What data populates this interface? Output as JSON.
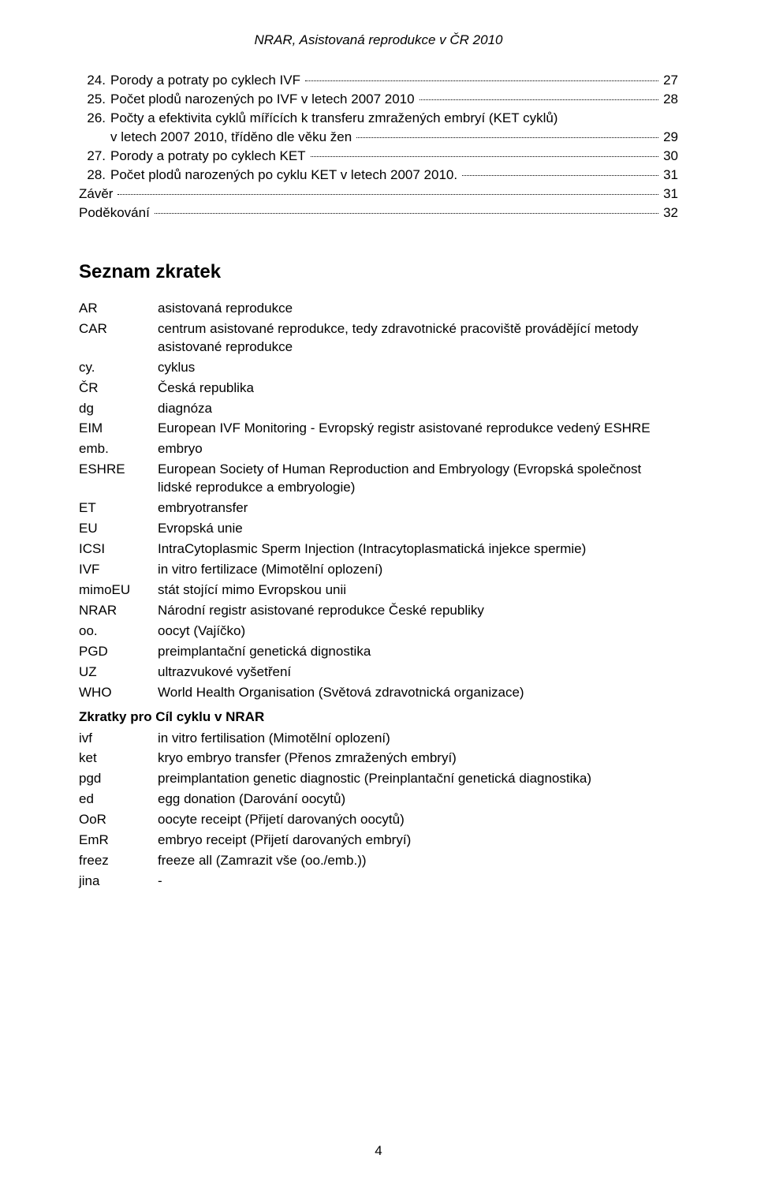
{
  "header": "NRAR, Asistovaná reprodukce v ČR 2010",
  "toc": [
    {
      "num": "24.",
      "label": "Porody a potraty po cyklech IVF",
      "page": "27",
      "indent": true
    },
    {
      "num": "25.",
      "label": "Počet plodů narozených po IVF v letech 2007 2010",
      "page": "28",
      "indent": true
    },
    {
      "num": "26.",
      "label": "Počty a efektivita cyklů mířících k transferu zmražených embryí (KET cyklů)",
      "cont": "v letech 2007 2010, tříděno dle věku žen",
      "page": "29",
      "indent": true
    },
    {
      "num": "27.",
      "label": "Porody a potraty po cyklech KET",
      "page": "30",
      "indent": true
    },
    {
      "num": "28.",
      "label": "Počet plodů narozených po cyklu KET v letech 2007 2010.",
      "page": "31",
      "indent": true
    },
    {
      "num": "",
      "label": "Závěr",
      "page": "31",
      "indent": false
    },
    {
      "num": "",
      "label": "Poděkování",
      "page": "32",
      "indent": false
    }
  ],
  "section_title": "Seznam zkratek",
  "abbr": [
    {
      "term": "AR",
      "def": "asistovaná reprodukce"
    },
    {
      "term": "CAR",
      "def": "centrum asistované reprodukce, tedy zdravotnické pracoviště provádějící metody asistované reprodukce"
    },
    {
      "term": "cy.",
      "def": "cyklus"
    },
    {
      "term": "ČR",
      "def": "Česká republika"
    },
    {
      "term": "dg",
      "def": "diagnóza"
    },
    {
      "term": "EIM",
      "def": "European IVF Monitoring - Evropský registr asistované reprodukce vedený ESHRE"
    },
    {
      "term": "emb.",
      "def": "embryo"
    },
    {
      "term": "ESHRE",
      "def": "European Society of Human Reproduction and Embryology (Evropská společnost lidské reprodukce a embryologie)"
    },
    {
      "term": "ET",
      "def": "embryotransfer"
    },
    {
      "term": "EU",
      "def": "Evropská unie"
    },
    {
      "term": "ICSI",
      "def": "IntraCytoplasmic Sperm Injection (Intracytoplasmatická injekce spermie)"
    },
    {
      "term": "IVF",
      "def": "in vitro fertilizace (Mimotělní oplození)"
    },
    {
      "term": "mimoEU",
      "def": "stát stojící mimo Evropskou unii"
    },
    {
      "term": "NRAR",
      "def": "Národní registr asistované reprodukce České republiky"
    },
    {
      "term": "oo.",
      "def": "oocyt (Vajíčko)"
    },
    {
      "term": "PGD",
      "def": "preimplantační genetická dignostika"
    },
    {
      "term": "UZ",
      "def": "ultrazvukové vyšetření"
    },
    {
      "term": "WHO",
      "def": "World Health Organisation (Světová zdravotnická organizace)"
    }
  ],
  "sub_title": "Zkratky pro Cíl cyklu v NRAR",
  "abbr2": [
    {
      "term": "ivf",
      "def": "in vitro fertilisation (Mimotělní oplození)"
    },
    {
      "term": "ket",
      "def": "kryo embryo transfer (Přenos zmražených embryí)"
    },
    {
      "term": "pgd",
      "def": "preimplantation genetic diagnostic (Preinplantační genetická diagnostika)"
    },
    {
      "term": "ed",
      "def": "egg donation (Darování oocytů)"
    },
    {
      "term": "OoR",
      "def": "oocyte receipt (Přijetí darovaných oocytů)"
    },
    {
      "term": "EmR",
      "def": "embryo receipt (Přijetí darovaných embryí)"
    },
    {
      "term": "freez",
      "def": "freeze all (Zamrazit vše (oo./emb.))"
    },
    {
      "term": "jina",
      "def": "-"
    }
  ],
  "page_number": "4"
}
